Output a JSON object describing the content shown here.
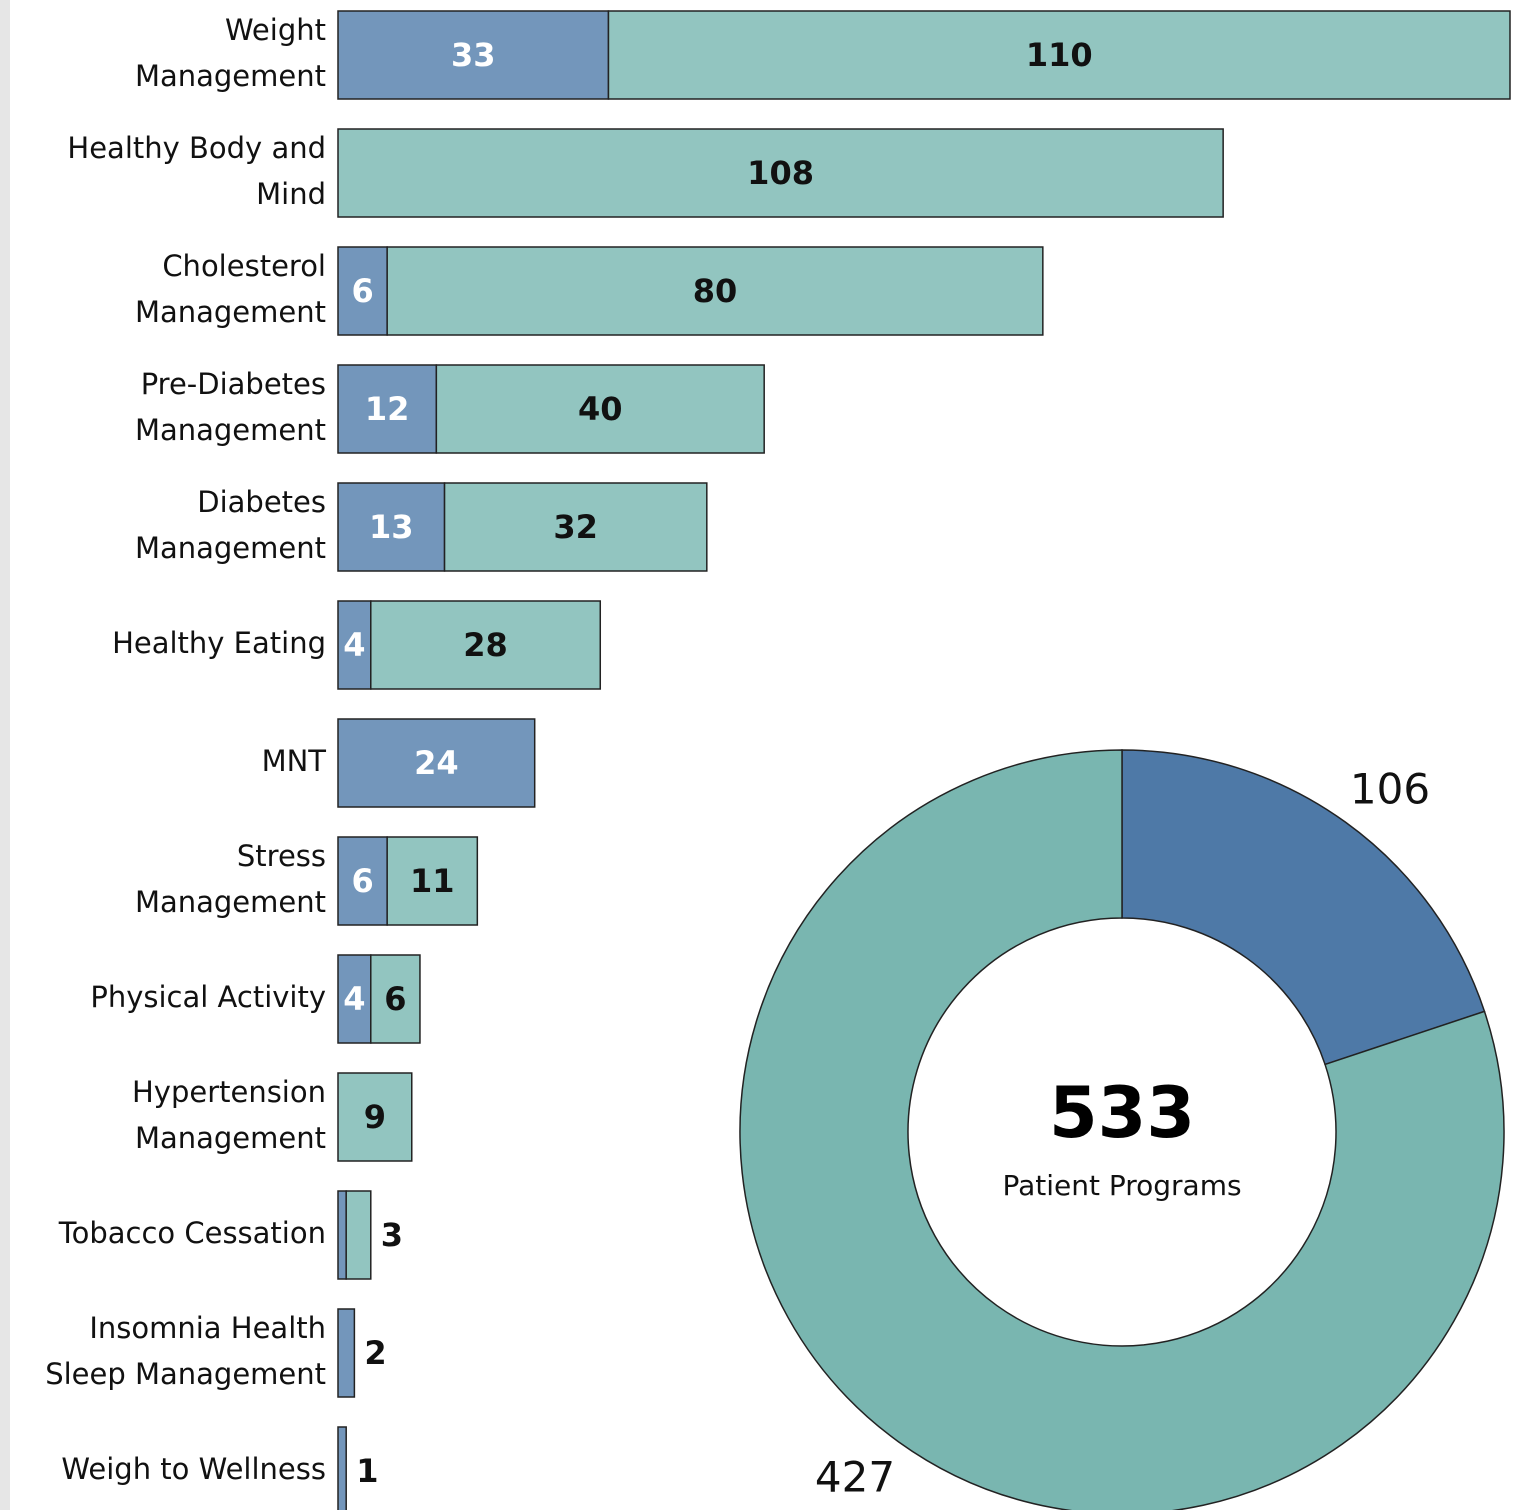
{
  "chart_data": [
    {
      "type": "bar",
      "categories": [
        "Weight\nManagement",
        "Healthy Body and\nMind",
        "Cholesterol\nManagement",
        "Pre-Diabetes\nManagement",
        "Diabetes\nManagement",
        "Healthy Eating",
        "MNT",
        "Stress\nManagement",
        "Physical Activity",
        "Hypertension\nManagement",
        "Tobacco Cessation",
        "Insomnia Health\nSleep Management",
        "Weigh to Wellness"
      ],
      "series": [
        {
          "color": "#7396bb",
          "values": [
            33,
            null,
            6,
            12,
            13,
            4,
            24,
            6,
            4,
            null,
            1,
            2,
            1
          ],
          "value_labels": [
            "33",
            null,
            "6",
            "12",
            "13",
            "4",
            "24",
            "6",
            "4",
            null,
            null,
            "2",
            "1"
          ]
        },
        {
          "color": "#92c5c0",
          "values": [
            110,
            108,
            80,
            40,
            32,
            28,
            null,
            11,
            6,
            9,
            3,
            null,
            null
          ]
        }
      ]
    },
    {
      "type": "donut",
      "values": [
        106,
        427
      ],
      "colors": [
        "#4e79a7",
        "#79b6b0"
      ],
      "total": 533,
      "total_label": "Patient Programs"
    }
  ]
}
